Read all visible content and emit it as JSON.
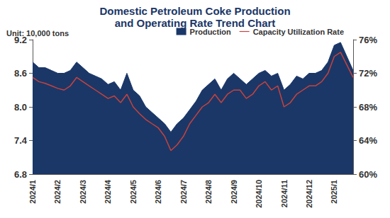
{
  "chart_data": {
    "type": "line",
    "title": "Domestic Petroleum Coke Production\nand Operating Rate Trend Chart",
    "ylabel": "Unit: 10,000 tons",
    "legend": "top-right",
    "grid": false,
    "categories": [
      "2024/1",
      null,
      null,
      null,
      "2024/2",
      null,
      null,
      null,
      "2024/3",
      null,
      null,
      null,
      "2024/4",
      null,
      null,
      null,
      "2024/5",
      null,
      null,
      null,
      "2024/6",
      null,
      null,
      null,
      "2024/7",
      null,
      null,
      null,
      "2024/8",
      null,
      null,
      null,
      "2024/9",
      null,
      null,
      null,
      "2024/10",
      null,
      null,
      null,
      "2024/11",
      null,
      null,
      null,
      "2024/12",
      null,
      null,
      null,
      "2025/1",
      null,
      null,
      null
    ],
    "ylim": [
      6.8,
      9.2
    ],
    "yticks": [
      6.8,
      7.4,
      {
        "value": 8,
        "label": "8.0"
      },
      8.6,
      9.2
    ],
    "y2lim": [
      60,
      76
    ],
    "y2ticks": [
      {
        "value": 60,
        "label": "60%"
      },
      {
        "value": 64,
        "label": "64%"
      },
      {
        "value": 68,
        "label": "68%"
      },
      {
        "value": 72,
        "label": "72%"
      },
      {
        "value": 76,
        "label": "76%"
      }
    ],
    "series": [
      {
        "name": "Production",
        "type": "area",
        "color": "#1b3768",
        "values": [
          8.8,
          8.7,
          8.7,
          8.65,
          8.6,
          8.6,
          8.65,
          8.8,
          8.7,
          8.6,
          8.55,
          8.5,
          8.4,
          8.45,
          8.3,
          8.6,
          8.3,
          8.2,
          8.0,
          7.9,
          7.8,
          7.7,
          7.55,
          7.7,
          7.8,
          7.95,
          8.1,
          8.3,
          8.4,
          8.5,
          8.3,
          8.5,
          8.6,
          8.5,
          8.4,
          8.5,
          8.6,
          8.65,
          8.55,
          8.6,
          8.3,
          8.4,
          8.55,
          8.5,
          8.6,
          8.6,
          8.65,
          8.8,
          9.1,
          9.15,
          8.9,
          8.65
        ]
      },
      {
        "name": "Capacity Utilization Rate",
        "type": "line",
        "axis": "y2",
        "color": "#c8423b",
        "values": [
          71.5,
          71,
          70.8,
          70.5,
          70.2,
          70,
          70.5,
          71.5,
          71,
          70.5,
          70,
          69.5,
          69,
          69.3,
          68.5,
          69.5,
          68,
          67.2,
          66.5,
          66,
          65.5,
          64.5,
          62.8,
          63.5,
          64.5,
          66,
          67,
          68,
          68.5,
          69.5,
          68.5,
          69.5,
          70,
          70,
          69,
          69.5,
          70.5,
          71,
          70,
          70.5,
          68,
          68.5,
          69.5,
          70,
          70.5,
          70.5,
          71,
          72,
          74,
          74.5,
          73,
          71.5
        ]
      }
    ]
  }
}
